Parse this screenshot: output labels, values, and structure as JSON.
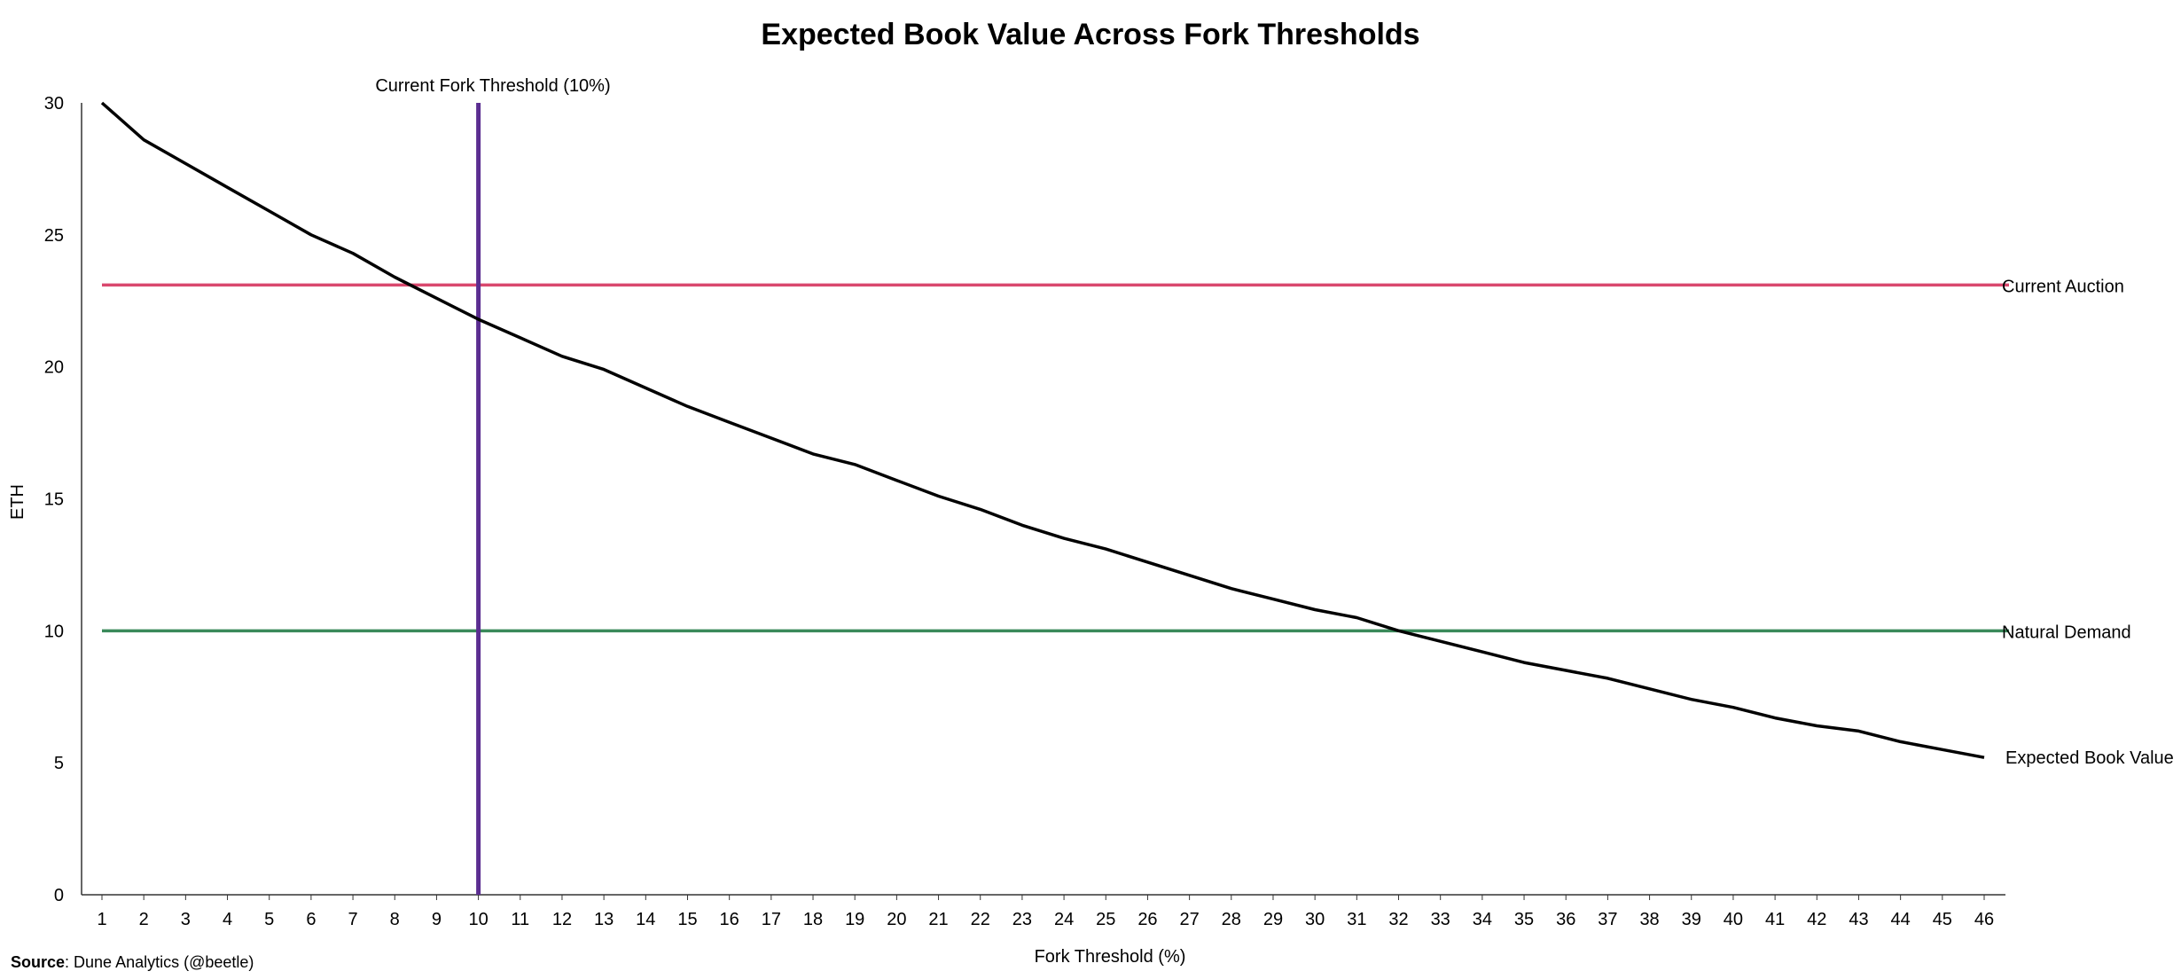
{
  "chart_data": {
    "type": "line",
    "title": "Expected Book Value Across Fork Thresholds",
    "xlabel": "Fork Threshold (%)",
    "ylabel": "ETH",
    "x": [
      1,
      2,
      3,
      4,
      5,
      6,
      7,
      8,
      9,
      10,
      11,
      12,
      13,
      14,
      15,
      16,
      17,
      18,
      19,
      20,
      21,
      22,
      23,
      24,
      25,
      26,
      27,
      28,
      29,
      30,
      31,
      32,
      33,
      34,
      35,
      36,
      37,
      38,
      39,
      40,
      41,
      42,
      43,
      44,
      45,
      46
    ],
    "ylim": [
      0,
      30
    ],
    "yticks": [
      0,
      5,
      10,
      15,
      20,
      25,
      30
    ],
    "grid": false,
    "series": [
      {
        "name": "Expected Book Value",
        "color": "#000000",
        "values": [
          30.0,
          28.6,
          27.7,
          26.8,
          25.9,
          25.0,
          24.3,
          23.4,
          22.6,
          21.8,
          21.1,
          20.4,
          19.9,
          19.2,
          18.5,
          17.9,
          17.3,
          16.7,
          16.3,
          15.7,
          15.1,
          14.6,
          14.0,
          13.5,
          13.1,
          12.6,
          12.1,
          11.6,
          11.2,
          10.8,
          10.5,
          10.0,
          9.6,
          9.2,
          8.8,
          8.5,
          8.2,
          7.8,
          7.4,
          7.1,
          6.7,
          6.4,
          6.2,
          5.8,
          5.5,
          5.2
        ]
      }
    ],
    "reference_lines": [
      {
        "orientation": "horizontal",
        "value": 23.1,
        "name": "Current Auction",
        "color": "#d9486e"
      },
      {
        "orientation": "horizontal",
        "value": 10.0,
        "name": "Natural Demand",
        "color": "#3a8a5a"
      },
      {
        "orientation": "vertical",
        "value": 10,
        "name": "Current Fork Threshold (10%)",
        "color": "#5b2d91"
      }
    ]
  },
  "source": {
    "label": "Source",
    "text": ": Dune Analytics (@beetle)"
  }
}
